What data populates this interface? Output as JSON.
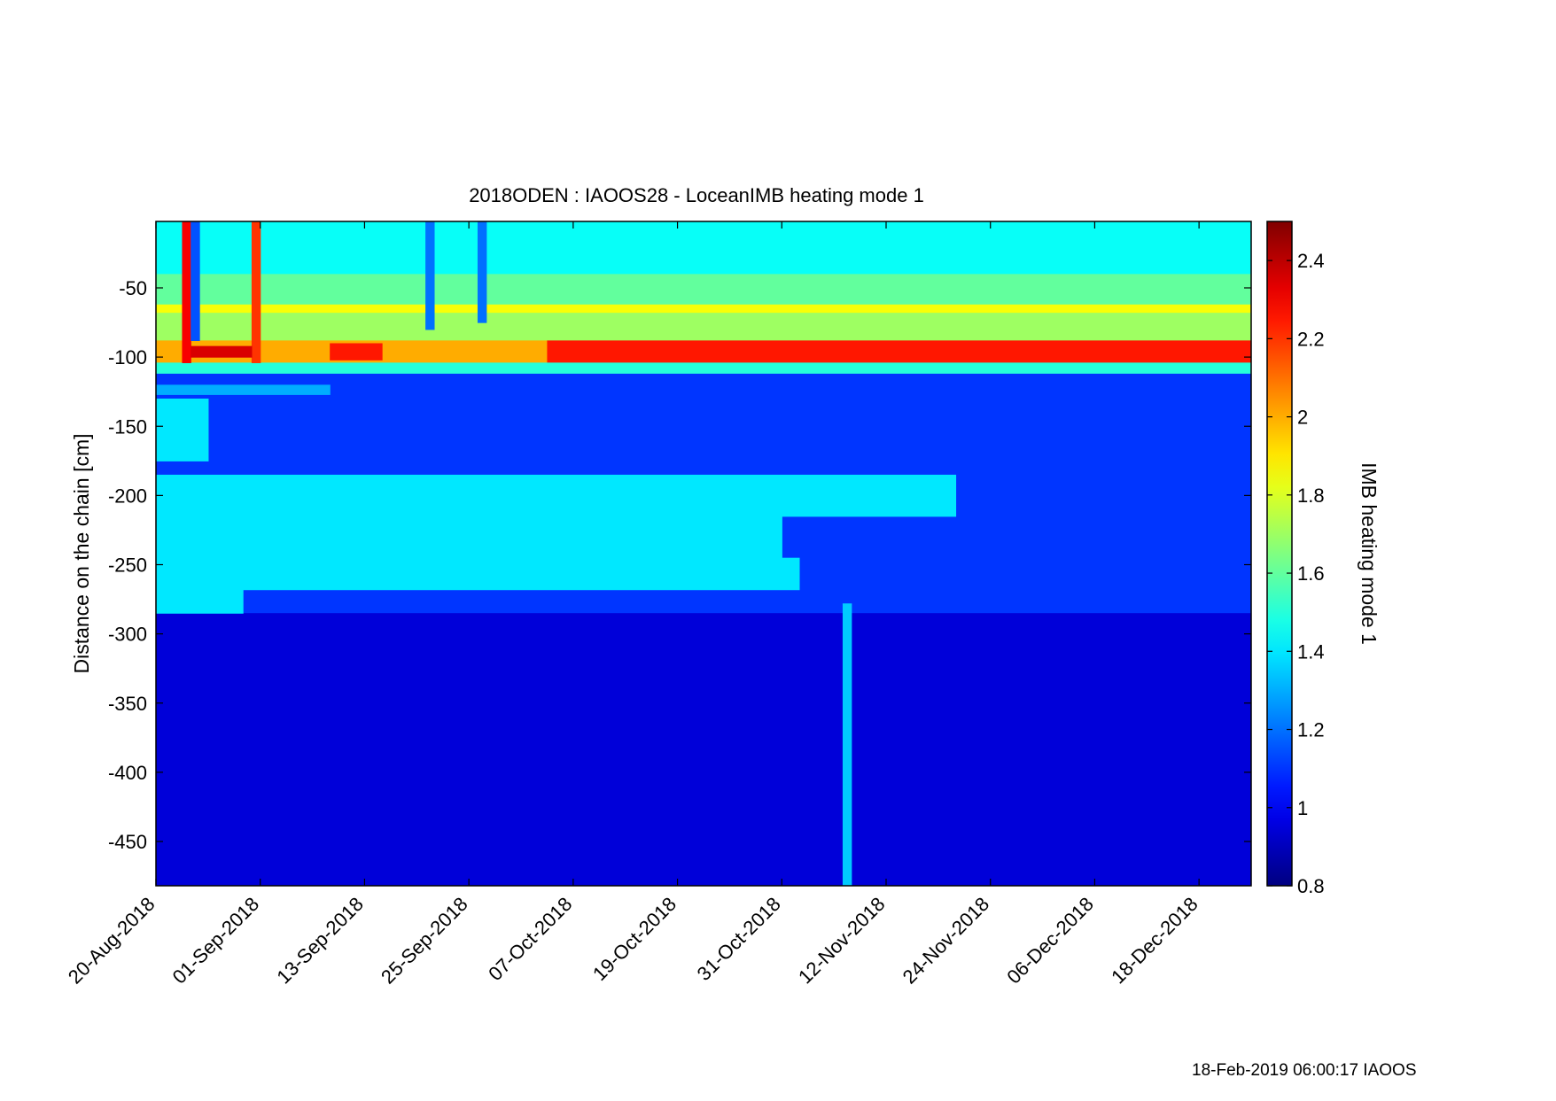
{
  "footer": "18-Feb-2019 06:00:17 IAOOS",
  "chart_data": {
    "type": "heatmap",
    "title": "2018ODEN : IAOOS28 - LoceanIMB heating mode 1",
    "xlabel": "",
    "ylabel": "Distance on the chain [cm]",
    "colorbar_label": "IMB heating mode 1",
    "x_tick_labels": [
      "20-Aug-2018",
      "01-Sep-2018",
      "13-Sep-2018",
      "25-Sep-2018",
      "07-Oct-2018",
      "19-Oct-2018",
      "31-Oct-2018",
      "12-Nov-2018",
      "24-Nov-2018",
      "06-Dec-2018",
      "18-Dec-2018"
    ],
    "x_tick_day_offsets": [
      0,
      12,
      24,
      36,
      48,
      60,
      72,
      84,
      96,
      108,
      120
    ],
    "xlim_days": [
      0,
      126
    ],
    "y_ticks": [
      -50,
      -100,
      -150,
      -200,
      -250,
      -300,
      -350,
      -400,
      -450
    ],
    "ylim": [
      -482,
      -2
    ],
    "colorbar_ticks": [
      2.4,
      2.2,
      2,
      1.8,
      1.6,
      1.4,
      1.2,
      1,
      0.8
    ],
    "clim": [
      0.8,
      2.5
    ],
    "colormap": "jet",
    "grid": false,
    "cells": [
      {
        "x0": 0,
        "x1": 126,
        "y0": -2,
        "y1": -40,
        "value": 1.45
      },
      {
        "x0": 0,
        "x1": 126,
        "y0": -40,
        "y1": -62,
        "value": 1.6
      },
      {
        "x0": 0,
        "x1": 126,
        "y0": -62,
        "y1": -68,
        "value": 1.85
      },
      {
        "x0": 0,
        "x1": 126,
        "y0": -68,
        "y1": -88,
        "value": 1.7
      },
      {
        "x0": 0,
        "x1": 45,
        "y0": -88,
        "y1": -104,
        "value": 2.0
      },
      {
        "x0": 45,
        "x1": 126,
        "y0": -88,
        "y1": -104,
        "value": 2.25
      },
      {
        "x0": 0,
        "x1": 126,
        "y0": -104,
        "y1": -112,
        "value": 1.5
      },
      {
        "x0": 0,
        "x1": 126,
        "y0": -112,
        "y1": -285,
        "value": 1.1
      },
      {
        "x0": 0,
        "x1": 126,
        "y0": -285,
        "y1": -482,
        "value": 0.95
      },
      {
        "x0": 0,
        "x1": 6,
        "y0": -130,
        "y1": -175,
        "value": 1.4
      },
      {
        "x0": 0,
        "x1": 92,
        "y0": -185,
        "y1": -215,
        "value": 1.4
      },
      {
        "x0": 0,
        "x1": 72,
        "y0": -215,
        "y1": -245,
        "value": 1.4
      },
      {
        "x0": 0,
        "x1": 74,
        "y0": -245,
        "y1": -268,
        "value": 1.4
      },
      {
        "x0": 0,
        "x1": 10,
        "y0": -268,
        "y1": -285,
        "value": 1.4
      },
      {
        "x0": 0,
        "x1": 20,
        "y0": -120,
        "y1": -127,
        "value": 1.3
      },
      {
        "x0": 3,
        "x1": 4,
        "y0": -2,
        "y1": -104,
        "value": 2.3
      },
      {
        "x0": 11,
        "x1": 12,
        "y0": -2,
        "y1": -104,
        "value": 2.2
      },
      {
        "x0": 4,
        "x1": 11,
        "y0": -92,
        "y1": -100,
        "value": 2.35
      },
      {
        "x0": 20,
        "x1": 26,
        "y0": -90,
        "y1": -102,
        "value": 2.25
      },
      {
        "x0": 4,
        "x1": 5,
        "y0": -2,
        "y1": -88,
        "value": 1.15
      },
      {
        "x0": 31,
        "x1": 32,
        "y0": -2,
        "y1": -80,
        "value": 1.2
      },
      {
        "x0": 37,
        "x1": 38,
        "y0": -2,
        "y1": -75,
        "value": 1.2
      },
      {
        "x0": 79,
        "x1": 80,
        "y0": -278,
        "y1": -482,
        "value": 1.35
      }
    ]
  }
}
